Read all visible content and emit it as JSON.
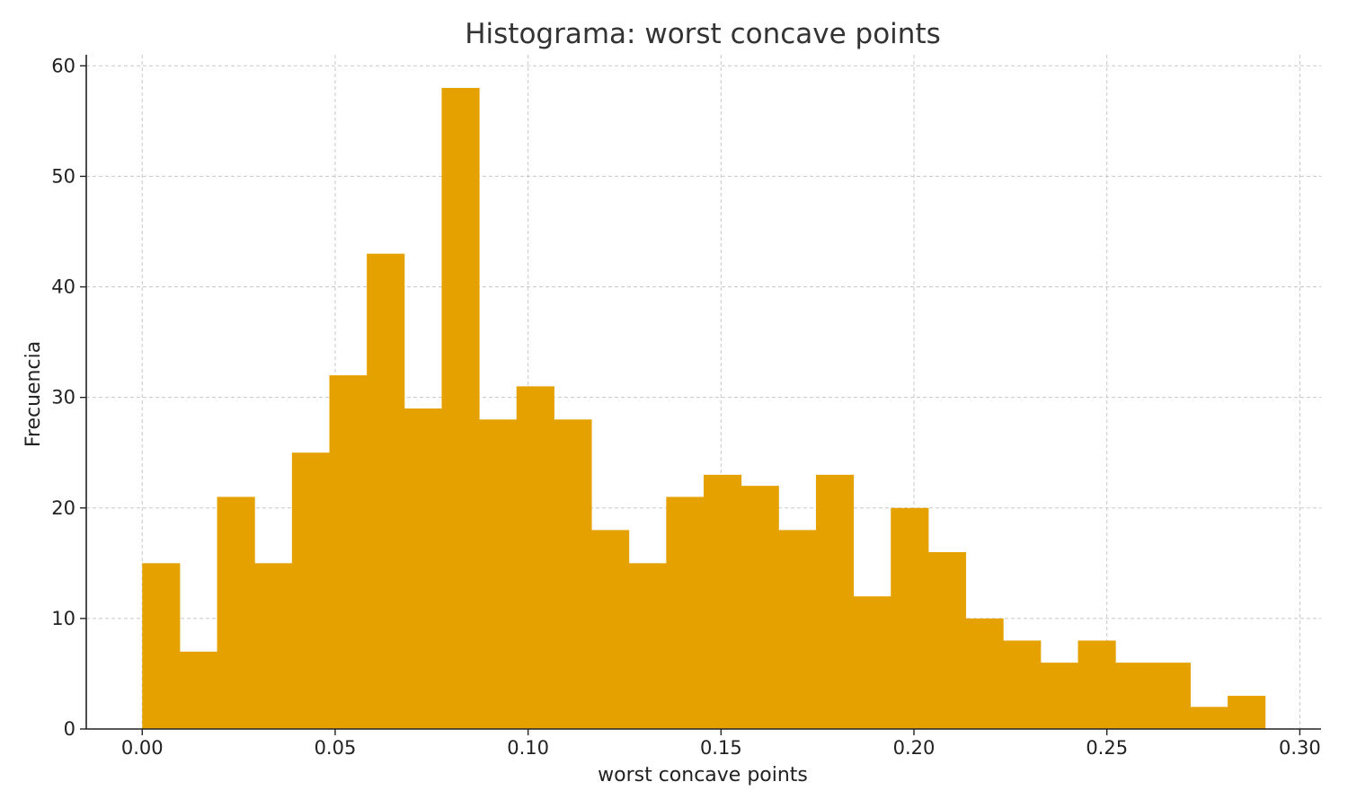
{
  "chart_data": {
    "type": "bar",
    "title": "Histograma: worst concave points",
    "xlabel": "worst concave points",
    "ylabel": "Frecuencia",
    "bar_color": "#E5A100",
    "grid": true,
    "xlim": [
      -0.0145,
      0.3055
    ],
    "ylim": [
      0,
      61
    ],
    "bin_start": 0.0,
    "bin_width": 0.0097,
    "counts": [
      15,
      7,
      21,
      15,
      25,
      32,
      43,
      29,
      58,
      28,
      31,
      28,
      18,
      15,
      21,
      23,
      22,
      18,
      23,
      12,
      20,
      16,
      10,
      8,
      6,
      8,
      6,
      6,
      2,
      3
    ],
    "x_ticks": [
      0.0,
      0.05,
      0.1,
      0.15,
      0.2,
      0.25,
      0.3
    ],
    "x_tick_labels": [
      "0.00",
      "0.05",
      "0.10",
      "0.15",
      "0.20",
      "0.25",
      "0.30"
    ],
    "y_ticks": [
      0,
      10,
      20,
      30,
      40,
      50,
      60
    ],
    "y_tick_labels": [
      "0",
      "10",
      "20",
      "30",
      "40",
      "50",
      "60"
    ]
  }
}
